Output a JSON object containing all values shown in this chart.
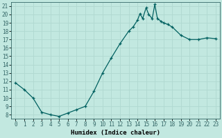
{
  "xlabel": "Humidex (Indice chaleur)",
  "background_color": "#c2e8e0",
  "grid_color": "#b0d8d0",
  "line_color": "#006060",
  "marker_color": "#006060",
  "xlim": [
    -0.5,
    23.5
  ],
  "ylim": [
    7.5,
    21.5
  ],
  "xticks": [
    0,
    1,
    2,
    3,
    4,
    5,
    6,
    7,
    8,
    9,
    10,
    11,
    12,
    13,
    14,
    15,
    16,
    17,
    18,
    19,
    20,
    21,
    22,
    23
  ],
  "yticks": [
    8,
    9,
    10,
    11,
    12,
    13,
    14,
    15,
    16,
    17,
    18,
    19,
    20,
    21
  ],
  "x": [
    0,
    1,
    2,
    3,
    4,
    5,
    6,
    7,
    8,
    9,
    10,
    11,
    12,
    13,
    13.5,
    14,
    14.3,
    14.6,
    15,
    15.3,
    15.7,
    16,
    16.3,
    16.7,
    17,
    17.5,
    18,
    19,
    20,
    21,
    22,
    23
  ],
  "y": [
    11.8,
    11.0,
    10.0,
    8.3,
    8.0,
    7.8,
    8.2,
    8.6,
    9.0,
    10.8,
    13.0,
    14.8,
    16.5,
    18.0,
    18.5,
    19.3,
    20.1,
    19.5,
    20.8,
    20.0,
    19.5,
    21.2,
    19.5,
    19.2,
    19.0,
    18.8,
    18.5,
    17.5,
    17.0,
    17.0,
    17.2,
    17.1
  ]
}
